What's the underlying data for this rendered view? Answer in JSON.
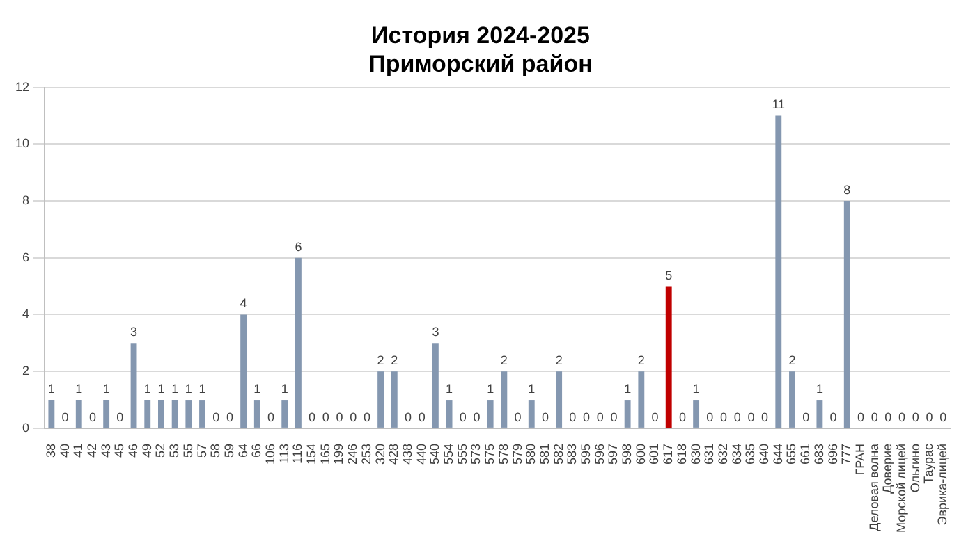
{
  "chart_data": {
    "type": "bar",
    "title": "История 2024-2025",
    "subtitle": "Приморский район",
    "categories": [
      "38",
      "40",
      "41",
      "42",
      "43",
      "45",
      "46",
      "49",
      "52",
      "53",
      "55",
      "57",
      "58",
      "59",
      "64",
      "66",
      "106",
      "113",
      "116",
      "154",
      "165",
      "199",
      "246",
      "253",
      "320",
      "428",
      "438",
      "440",
      "540",
      "554",
      "555",
      "573",
      "575",
      "578",
      "579",
      "580",
      "581",
      "582",
      "583",
      "595",
      "596",
      "597",
      "598",
      "600",
      "601",
      "617",
      "618",
      "630",
      "631",
      "632",
      "634",
      "635",
      "640",
      "644",
      "655",
      "661",
      "683",
      "696",
      "777",
      "ГРАН",
      "Деловая волна",
      "Доверие",
      "Морской лицей",
      "Ольгино",
      "Таурас",
      "Эврика-лицей"
    ],
    "values": [
      1,
      0,
      1,
      0,
      1,
      0,
      3,
      1,
      1,
      1,
      1,
      1,
      0,
      0,
      4,
      1,
      0,
      1,
      6,
      0,
      0,
      0,
      0,
      0,
      2,
      2,
      0,
      0,
      3,
      1,
      0,
      0,
      1,
      2,
      0,
      1,
      0,
      2,
      0,
      0,
      0,
      0,
      1,
      2,
      0,
      5,
      0,
      1,
      0,
      0,
      0,
      0,
      0,
      11,
      2,
      0,
      1,
      0,
      8,
      0,
      0,
      0,
      0,
      0,
      0,
      0
    ],
    "colors": [
      "#8497b0",
      "#8497b0",
      "#8497b0",
      "#8497b0",
      "#8497b0",
      "#8497b0",
      "#8497b0",
      "#8497b0",
      "#8497b0",
      "#8497b0",
      "#8497b0",
      "#8497b0",
      "#8497b0",
      "#8497b0",
      "#8497b0",
      "#8497b0",
      "#8497b0",
      "#8497b0",
      "#8497b0",
      "#8497b0",
      "#8497b0",
      "#8497b0",
      "#8497b0",
      "#8497b0",
      "#8497b0",
      "#8497b0",
      "#8497b0",
      "#8497b0",
      "#8497b0",
      "#8497b0",
      "#8497b0",
      "#8497b0",
      "#8497b0",
      "#8497b0",
      "#8497b0",
      "#8497b0",
      "#8497b0",
      "#8497b0",
      "#8497b0",
      "#8497b0",
      "#8497b0",
      "#8497b0",
      "#8497b0",
      "#8497b0",
      "#8497b0",
      "#c00000",
      "#8497b0",
      "#8497b0",
      "#8497b0",
      "#8497b0",
      "#8497b0",
      "#8497b0",
      "#8497b0",
      "#8497b0",
      "#8497b0",
      "#8497b0",
      "#8497b0",
      "#8497b0",
      "#8497b0",
      "#8497b0",
      "#8497b0",
      "#8497b0",
      "#8497b0",
      "#8497b0",
      "#8497b0",
      "#8497b0"
    ],
    "ylim": [
      0,
      12
    ],
    "yticks": [
      0,
      2,
      4,
      6,
      8,
      10,
      12
    ],
    "grid": "y",
    "data_labels": true,
    "legend": false
  }
}
